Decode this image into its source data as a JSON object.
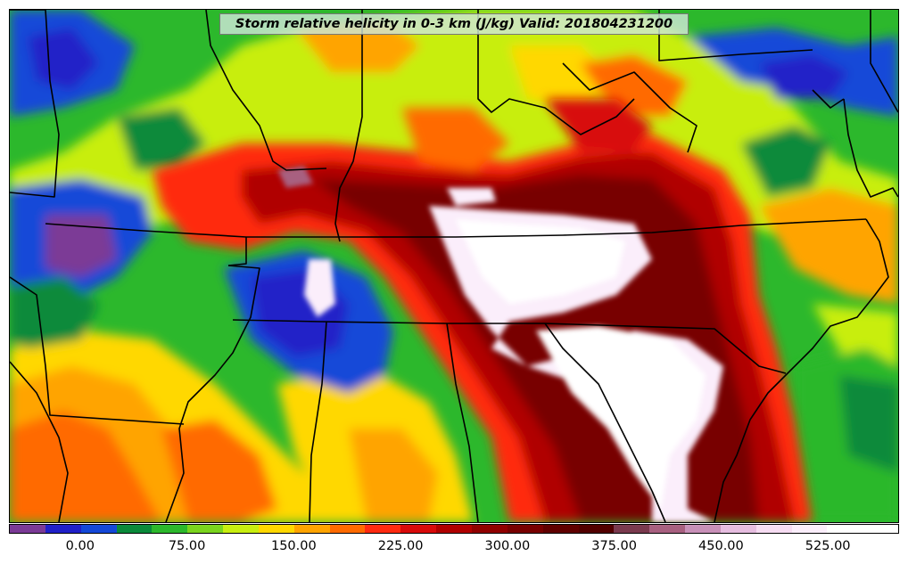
{
  "title": "Storm relative helicity in 0-3 km (J/kg) Valid: 201804231200",
  "colorbar": {
    "min": -50,
    "max": 575,
    "step": 25,
    "colors": [
      "#7b3a96",
      "#2020c8",
      "#1448d8",
      "#0a8a3a",
      "#2cb82c",
      "#7ad41e",
      "#c8ee10",
      "#ffd800",
      "#ffa400",
      "#ff6a00",
      "#ff2a10",
      "#d80a0a",
      "#b00000",
      "#900000",
      "#780000",
      "#600000",
      "#520000",
      "#7a3a4e",
      "#a86080",
      "#c890b8",
      "#e6bde0",
      "#f6dcf2",
      "#fbeefb",
      "#ffffff",
      "#ffffff"
    ],
    "tick_labels": [
      "0.00",
      "75.00",
      "150.00",
      "225.00",
      "300.00",
      "375.00",
      "450.00",
      "525.00"
    ],
    "tick_values": [
      0,
      75,
      150,
      225,
      300,
      375,
      450,
      525
    ]
  },
  "map": {
    "region": "Eastern United States",
    "background_color": "#2cb82c"
  }
}
